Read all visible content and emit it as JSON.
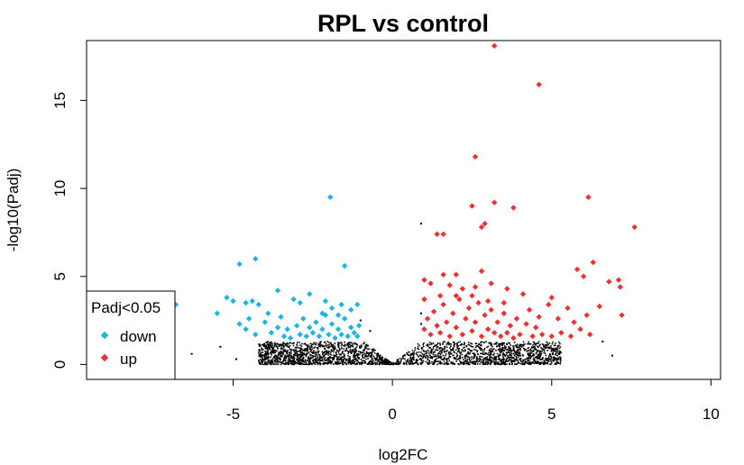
{
  "chart_data": {
    "type": "scatter",
    "title": "RPL vs control",
    "xlabel": "log2FC",
    "ylabel": "-log10(Padj)",
    "xlim": [
      -9.6,
      10.3
    ],
    "ylim": [
      -0.85,
      18.4
    ],
    "x_ticks": [
      "-5",
      "0",
      "5",
      "10"
    ],
    "y_ticks": [
      "0",
      "5",
      "10",
      "15"
    ],
    "legend": {
      "title": "Padj<0.05",
      "position": "bottom-left",
      "entries": [
        {
          "label": "down",
          "color": "#1CB4E8"
        },
        {
          "label": "up",
          "color": "#F03030"
        }
      ]
    },
    "colors": {
      "down": "#1CB4E8",
      "up": "#F03030",
      "ns": "#000000"
    },
    "series": [
      {
        "name": "down",
        "points": [
          [
            -6.8,
            3.4
          ],
          [
            -5.5,
            2.9
          ],
          [
            -4.8,
            5.7
          ],
          [
            -4.3,
            6.0
          ],
          [
            -1.95,
            9.5
          ],
          [
            -1.5,
            5.6
          ],
          [
            -5.2,
            3.8
          ],
          [
            -5.0,
            3.6
          ],
          [
            -4.6,
            3.5
          ],
          [
            -4.4,
            3.6
          ],
          [
            -4.2,
            3.4
          ],
          [
            -3.6,
            4.2
          ],
          [
            -3.1,
            3.7
          ],
          [
            -2.9,
            3.5
          ],
          [
            -2.6,
            4.0
          ],
          [
            -2.1,
            3.6
          ],
          [
            -1.9,
            3.2
          ],
          [
            -1.6,
            3.4
          ],
          [
            -1.3,
            3.1
          ],
          [
            -1.1,
            3.4
          ],
          [
            -4.8,
            2.3
          ],
          [
            -4.6,
            2.0
          ],
          [
            -4.3,
            1.7
          ],
          [
            -4.0,
            2.4
          ],
          [
            -3.8,
            1.8
          ],
          [
            -3.6,
            2.1
          ],
          [
            -3.4,
            1.6
          ],
          [
            -3.3,
            2.0
          ],
          [
            -3.2,
            1.5
          ],
          [
            -3.0,
            2.2
          ],
          [
            -2.9,
            1.7
          ],
          [
            -2.8,
            2.6
          ],
          [
            -2.7,
            1.6
          ],
          [
            -2.6,
            2.1
          ],
          [
            -2.5,
            1.8
          ],
          [
            -2.4,
            2.4
          ],
          [
            -2.3,
            1.6
          ],
          [
            -2.2,
            2.0
          ],
          [
            -2.1,
            2.8
          ],
          [
            -2.0,
            1.7
          ],
          [
            -1.9,
            2.3
          ],
          [
            -1.8,
            1.5
          ],
          [
            -1.7,
            2.0
          ],
          [
            -1.6,
            1.7
          ],
          [
            -1.5,
            2.6
          ],
          [
            -1.4,
            1.6
          ],
          [
            -1.3,
            2.1
          ],
          [
            -1.2,
            1.8
          ],
          [
            -1.1,
            1.6
          ],
          [
            -1.05,
            2.2
          ],
          [
            -3.5,
            2.7
          ],
          [
            -2.2,
            2.9
          ],
          [
            -1.7,
            2.8
          ],
          [
            -3.9,
            2.9
          ],
          [
            -4.5,
            2.6
          ]
        ]
      },
      {
        "name": "up",
        "points": [
          [
            3.2,
            18.1
          ],
          [
            4.6,
            15.9
          ],
          [
            2.6,
            11.8
          ],
          [
            6.15,
            9.5
          ],
          [
            2.5,
            9.0
          ],
          [
            3.2,
            9.2
          ],
          [
            3.8,
            8.9
          ],
          [
            2.9,
            8.0
          ],
          [
            2.8,
            7.8
          ],
          [
            1.4,
            7.4
          ],
          [
            1.6,
            7.4
          ],
          [
            7.6,
            7.8
          ],
          [
            6.3,
            5.8
          ],
          [
            5.8,
            5.4
          ],
          [
            6.0,
            5.0
          ],
          [
            6.8,
            4.7
          ],
          [
            7.1,
            4.8
          ],
          [
            7.15,
            4.4
          ],
          [
            7.2,
            2.8
          ],
          [
            2.0,
            5.1
          ],
          [
            2.8,
            5.3
          ],
          [
            1.6,
            5.1
          ],
          [
            1.0,
            4.8
          ],
          [
            1.2,
            4.6
          ],
          [
            1.8,
            4.5
          ],
          [
            2.2,
            4.3
          ],
          [
            2.6,
            4.4
          ],
          [
            3.1,
            4.6
          ],
          [
            3.6,
            4.3
          ],
          [
            4.1,
            4.0
          ],
          [
            5.0,
            3.8
          ],
          [
            5.5,
            3.2
          ],
          [
            5.2,
            2.6
          ],
          [
            4.9,
            3.4
          ],
          [
            6.5,
            3.3
          ],
          [
            6.1,
            2.8
          ],
          [
            1.0,
            2.0
          ],
          [
            1.1,
            2.6
          ],
          [
            1.2,
            1.7
          ],
          [
            1.3,
            3.0
          ],
          [
            1.4,
            2.2
          ],
          [
            1.5,
            1.8
          ],
          [
            1.6,
            3.4
          ],
          [
            1.7,
            2.4
          ],
          [
            1.8,
            1.6
          ],
          [
            1.9,
            2.9
          ],
          [
            2.0,
            2.1
          ],
          [
            2.1,
            3.7
          ],
          [
            2.2,
            1.7
          ],
          [
            2.3,
            2.6
          ],
          [
            2.4,
            3.2
          ],
          [
            2.5,
            1.9
          ],
          [
            2.6,
            2.4
          ],
          [
            2.7,
            3.5
          ],
          [
            2.8,
            1.6
          ],
          [
            2.9,
            2.8
          ],
          [
            3.0,
            2.0
          ],
          [
            3.1,
            3.1
          ],
          [
            3.2,
            1.8
          ],
          [
            3.3,
            2.4
          ],
          [
            3.4,
            1.6
          ],
          [
            3.5,
            2.9
          ],
          [
            3.6,
            1.8
          ],
          [
            3.7,
            2.2
          ],
          [
            3.8,
            1.5
          ],
          [
            3.9,
            2.6
          ],
          [
            4.0,
            1.7
          ],
          [
            4.2,
            2.3
          ],
          [
            4.4,
            1.6
          ],
          [
            4.5,
            2.1
          ],
          [
            4.7,
            1.7
          ],
          [
            5.0,
            1.6
          ],
          [
            5.3,
            1.8
          ],
          [
            5.6,
            1.6
          ],
          [
            5.9,
            2.0
          ],
          [
            6.2,
            1.7
          ],
          [
            1.0,
            3.7
          ],
          [
            1.5,
            3.9
          ],
          [
            2.0,
            3.9
          ],
          [
            2.5,
            3.9
          ],
          [
            3.0,
            3.6
          ],
          [
            3.5,
            3.5
          ],
          [
            4.3,
            3.1
          ],
          [
            4.6,
            2.7
          ],
          [
            5.7,
            2.4
          ]
        ]
      }
    ]
  }
}
